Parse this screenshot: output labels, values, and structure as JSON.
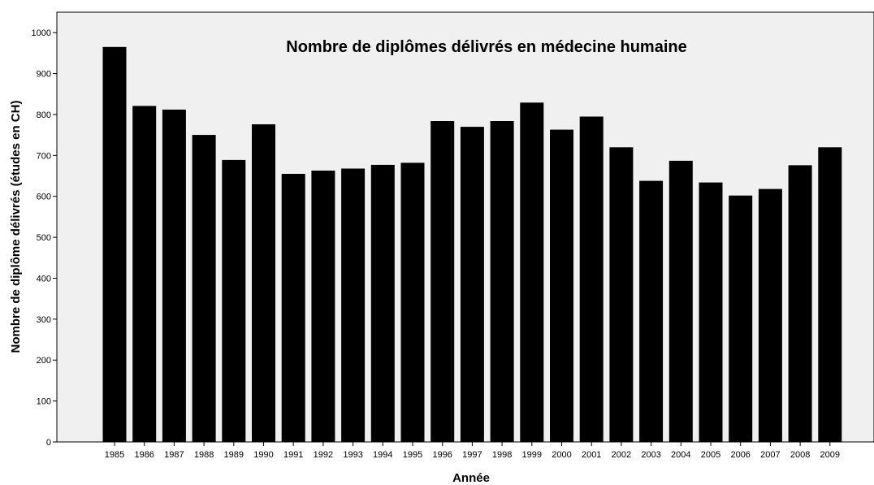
{
  "chart_data": {
    "type": "bar",
    "title": "Nombre de diplômes délivrés en médecine humaine",
    "xlabel": "Année",
    "ylabel": "Nombre de diplôme délivrés (études en CH)",
    "categories": [
      "1985",
      "1986",
      "1987",
      "1988",
      "1989",
      "1990",
      "1991",
      "1992",
      "1993",
      "1994",
      "1995",
      "1996",
      "1997",
      "1998",
      "1999",
      "2000",
      "2001",
      "2002",
      "2003",
      "2004",
      "2005",
      "2006",
      "2007",
      "2008",
      "2009"
    ],
    "values": [
      965,
      821,
      812,
      750,
      689,
      776,
      655,
      663,
      668,
      677,
      682,
      784,
      770,
      784,
      829,
      763,
      795,
      720,
      638,
      687,
      634,
      602,
      618,
      676,
      720
    ],
    "ylim": [
      0,
      1050
    ],
    "yticks": [
      0,
      100,
      200,
      300,
      400,
      500,
      600,
      700,
      800,
      900,
      1000
    ],
    "grid": false,
    "legend": "none",
    "colors": {
      "bar": "#000000",
      "plot_background": "#f0f0f0",
      "axis": "#000000"
    }
  }
}
